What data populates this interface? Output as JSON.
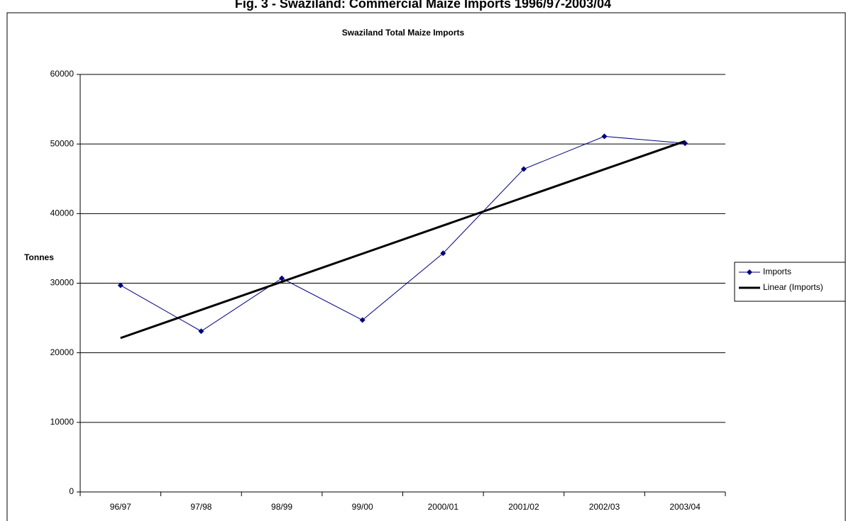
{
  "chart_data": {
    "type": "line",
    "title": "Fig. 3 - Swaziland: Commercial Maize Imports 1996/97-2003/04",
    "subtitle": "Swaziland Total Maize Imports",
    "y_label": "Tonnes",
    "categories": [
      "96/97",
      "97/98",
      "98/99",
      "99/00",
      "2000/01",
      "2001/02",
      "2002/03",
      "2003/04"
    ],
    "series": [
      {
        "name": "Imports",
        "color": "#000080",
        "values": [
          29700,
          23100,
          30700,
          24700,
          34300,
          46400,
          51100,
          50100
        ]
      }
    ],
    "trendline": {
      "name": "Linear (Imports)",
      "color": "#000000",
      "kind": "linear"
    },
    "ylim": [
      0,
      60000
    ],
    "yticks": [
      0,
      10000,
      20000,
      30000,
      40000,
      50000,
      60000
    ],
    "grid": true,
    "legend": "right"
  }
}
